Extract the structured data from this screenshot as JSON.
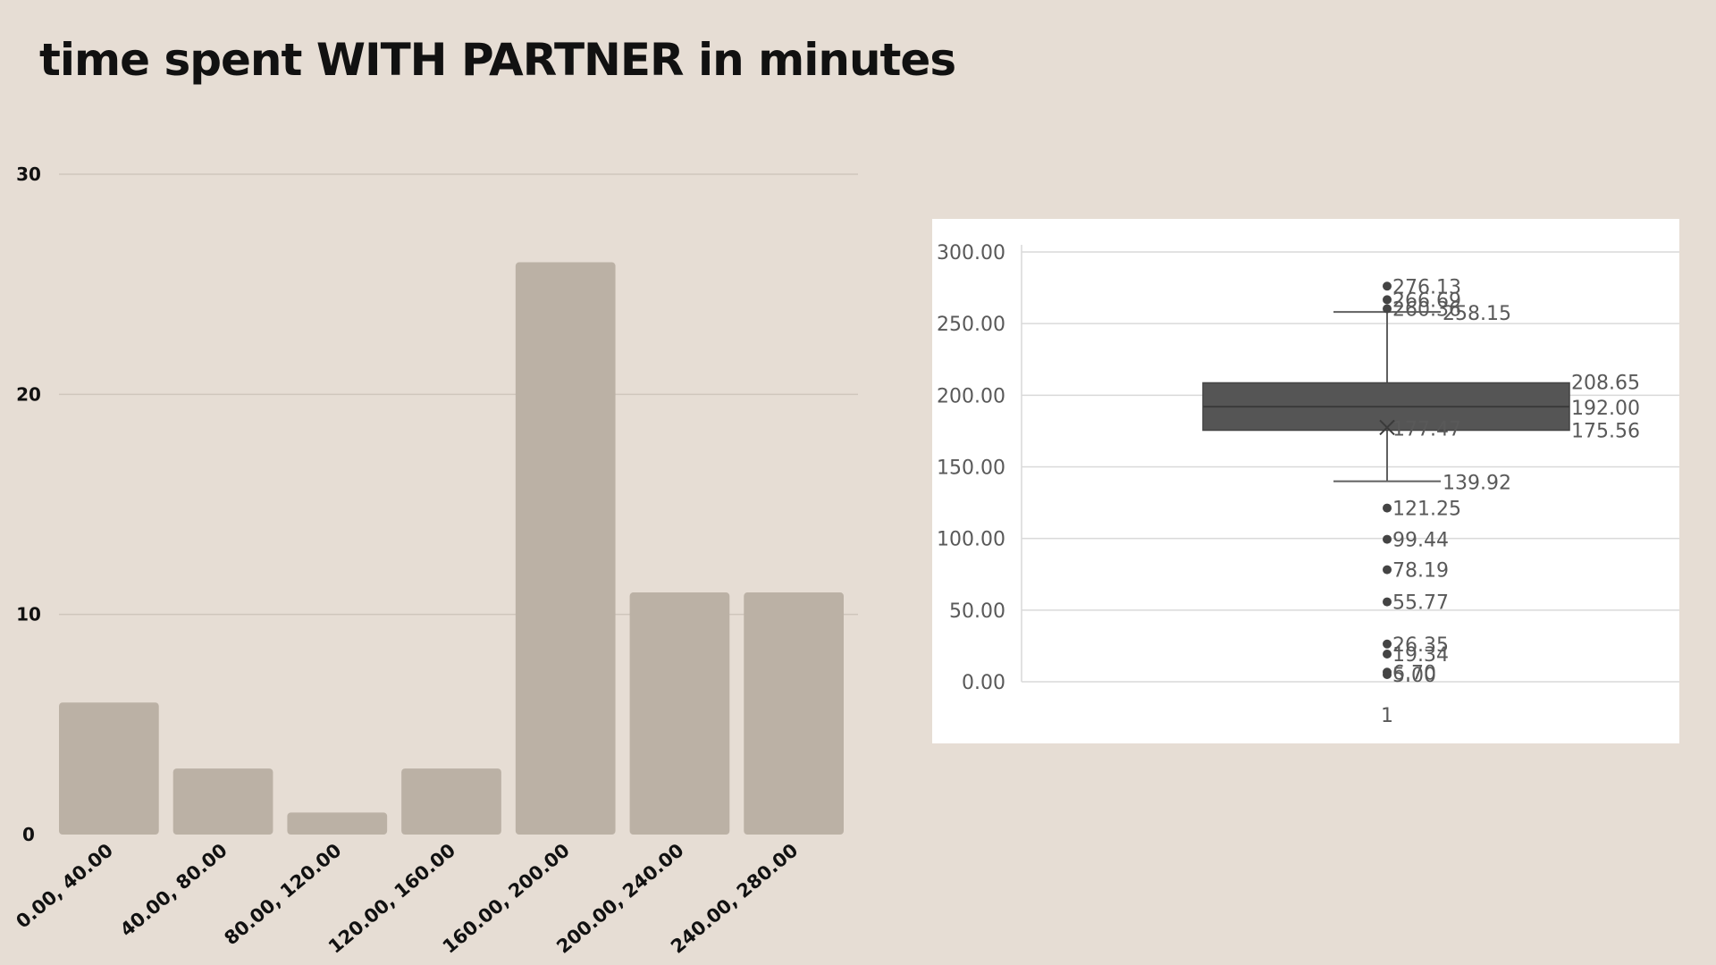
{
  "page": {
    "title": "time spent WITH PARTNER in minutes"
  },
  "chart_data": [
    {
      "type": "bar",
      "title": "time spent WITH PARTNER in minutes",
      "categories": [
        "0.00, 40.00",
        "40.00, 80.00",
        "80.00, 120.00",
        "120.00, 160.00",
        "160.00, 200.00",
        "200.00, 240.00",
        "240.00, 280.00"
      ],
      "values": [
        6,
        3,
        1,
        3,
        26,
        11,
        11
      ],
      "ylim": [
        0,
        30
      ],
      "yticks": [
        "0",
        "10",
        "20",
        "30"
      ],
      "xlabel": "",
      "ylabel": "",
      "grid": true,
      "colors": {
        "bar": "#BBB1A5",
        "grid": "#CFC6BC",
        "text": "#111111"
      }
    },
    {
      "type": "box",
      "categories": [
        "1"
      ],
      "ylim": [
        0,
        300
      ],
      "yticks": [
        "0.00",
        "50.00",
        "100.00",
        "150.00",
        "200.00",
        "250.00",
        "300.00"
      ],
      "box": {
        "q1": 175.56,
        "median": 192.0,
        "q3": 208.65,
        "mean": 177.47,
        "whisker_low": 139.92,
        "whisker_high": 258.15
      },
      "box_labels": {
        "q1": "175.56",
        "median": "192.00",
        "q3": "208.65",
        "mean": "177.47",
        "whisker_low": "139.92",
        "whisker_high": "258.15"
      },
      "outliers": [
        276.13,
        266.69,
        260.36,
        121.25,
        99.44,
        78.19,
        55.77,
        26.35,
        19.34,
        6.7,
        5.0
      ],
      "outlier_labels": [
        "276.13",
        "266.69",
        "260.36",
        "121.25",
        "99.44",
        "78.19",
        "55.77",
        "26.35",
        "19.34",
        "6.70",
        "5.00"
      ],
      "colors": {
        "box": "#555555",
        "line": "#606060",
        "grid": "#D9D9D9",
        "text": "#595959",
        "background": "#FFFFFF"
      }
    }
  ]
}
